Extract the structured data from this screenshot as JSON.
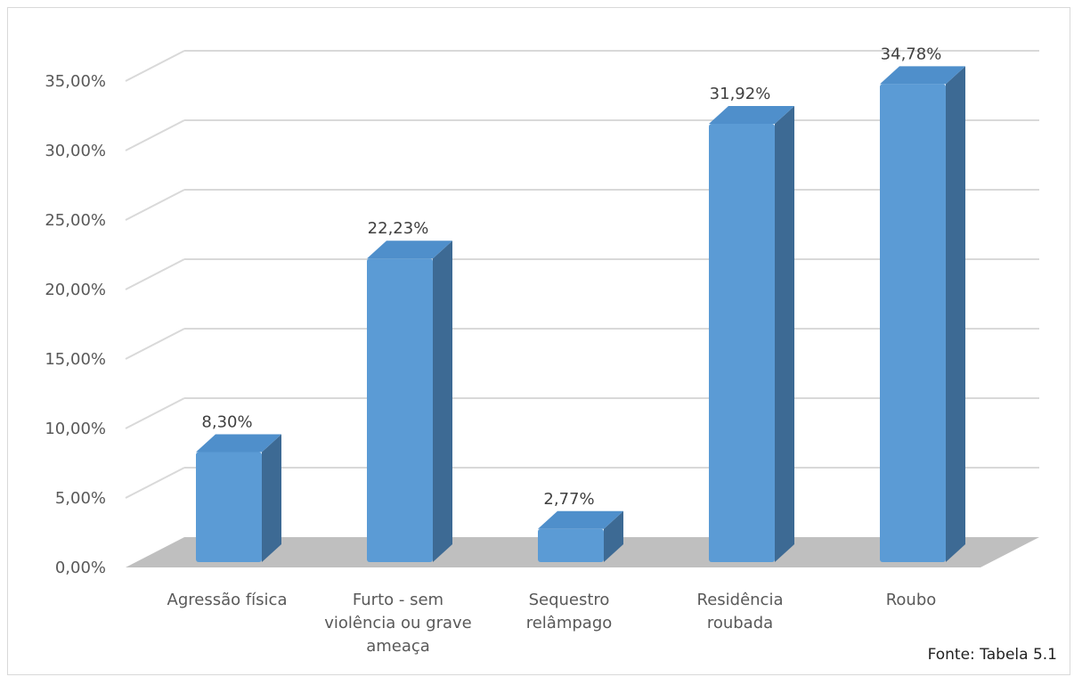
{
  "chart_data": {
    "type": "bar",
    "title": "",
    "xlabel": "",
    "ylabel": "",
    "categories": [
      [
        "Agressão física"
      ],
      [
        "Furto - sem",
        "violência ou grave",
        "ameaça"
      ],
      [
        "Sequestro",
        "relâmpago"
      ],
      [
        "Residência",
        "roubada"
      ],
      [
        "Roubo"
      ]
    ],
    "values": [
      8.3,
      22.23,
      2.77,
      31.92,
      34.78
    ],
    "value_labels": [
      "8,30%",
      "22,23%",
      "2,77%",
      "31,92%",
      "34,78%"
    ],
    "yticks": [
      "0,00%",
      "5,00%",
      "10,00%",
      "15,00%",
      "20,00%",
      "25,00%",
      "30,00%",
      "35,00%"
    ],
    "ylim": [
      0,
      37.5
    ],
    "grid": true,
    "legend": "none",
    "three_d": true,
    "colors": {
      "bar_front": "#5b9bd5",
      "bar_top": "#4f8fcb",
      "bar_side": "#3d6a94",
      "floor": "#bfbfbf",
      "grid": "#d9d9d9",
      "axis_text": "#595959",
      "label_text": "#404040"
    }
  },
  "source_note": "Fonte: Tabela 5.1"
}
